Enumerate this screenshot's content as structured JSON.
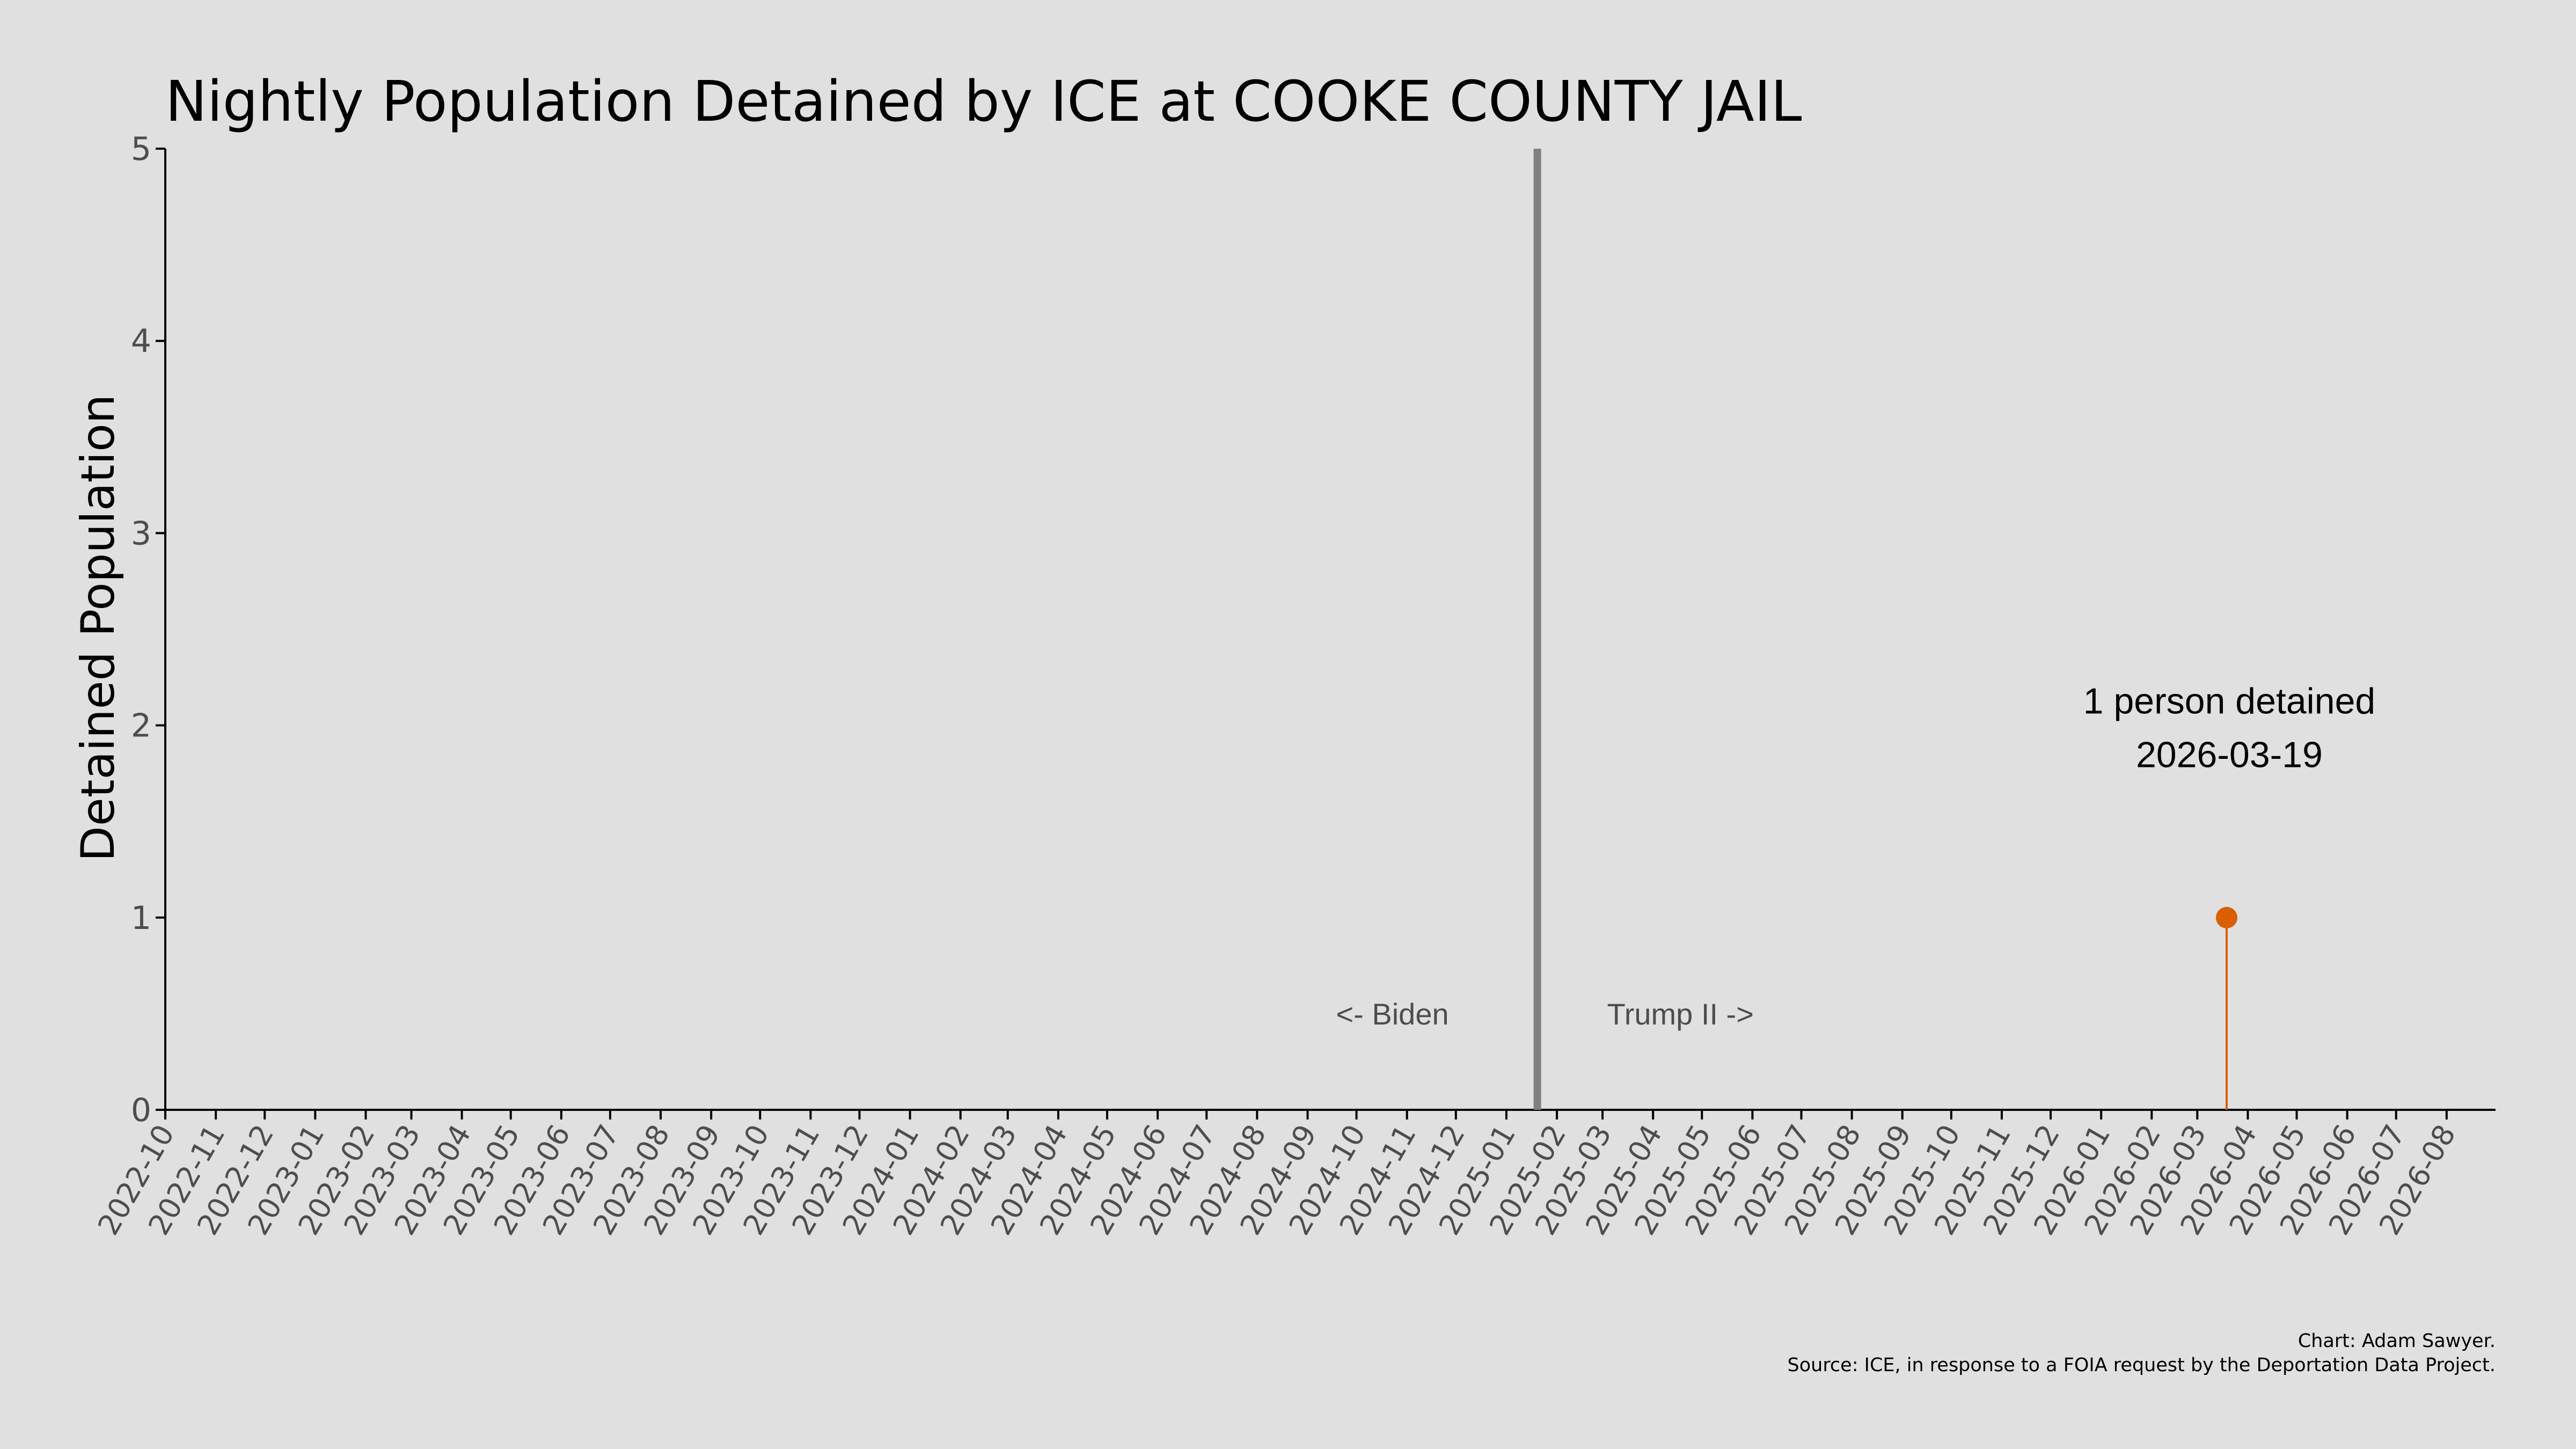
{
  "chart_data": {
    "type": "line",
    "title": "Nightly Population Detained by ICE at COOKE COUNTY JAIL",
    "xlabel": "",
    "ylabel": "Detained Population",
    "x_range": [
      "2022-10-01",
      "2026-08-31"
    ],
    "ylim": [
      0,
      5
    ],
    "y_ticks": [
      0,
      1,
      2,
      3,
      4,
      5
    ],
    "x_ticks": [
      "2022-10",
      "2022-11",
      "2022-12",
      "2023-01",
      "2023-02",
      "2023-03",
      "2023-04",
      "2023-05",
      "2023-06",
      "2023-07",
      "2023-08",
      "2023-09",
      "2023-10",
      "2023-11",
      "2023-12",
      "2024-01",
      "2024-02",
      "2024-03",
      "2024-04",
      "2024-05",
      "2024-06",
      "2024-07",
      "2024-08",
      "2024-09",
      "2024-10",
      "2024-11",
      "2024-12",
      "2025-01",
      "2025-02",
      "2025-03",
      "2025-04",
      "2025-05",
      "2025-06",
      "2025-07",
      "2025-08",
      "2025-09",
      "2025-10",
      "2025-11",
      "2025-12",
      "2026-01",
      "2026-02",
      "2026-03",
      "2026-04",
      "2026-05",
      "2026-06",
      "2026-07",
      "2026-08"
    ],
    "grid": false,
    "series": [
      {
        "color": "#d95f02",
        "points": [
          {
            "x": "2026-03-19",
            "y": 1
          }
        ]
      }
    ],
    "annotations": {
      "divider_date": "2025-01-20",
      "divider_color": "#808080",
      "left_label": "<- Biden",
      "right_label": "Trump II ->",
      "peak_line1": "1 person detained",
      "peak_line2": "2026-03-19"
    },
    "credit_line1": "Chart: Adam Sawyer.",
    "credit_line2": "Source: ICE, in response to a FOIA request by the Deportation Data Project."
  },
  "colors": {
    "background": "#e0e0e0",
    "axis": "#000000",
    "tick_text": "#4d4d4d",
    "accent": "#d95f02"
  }
}
